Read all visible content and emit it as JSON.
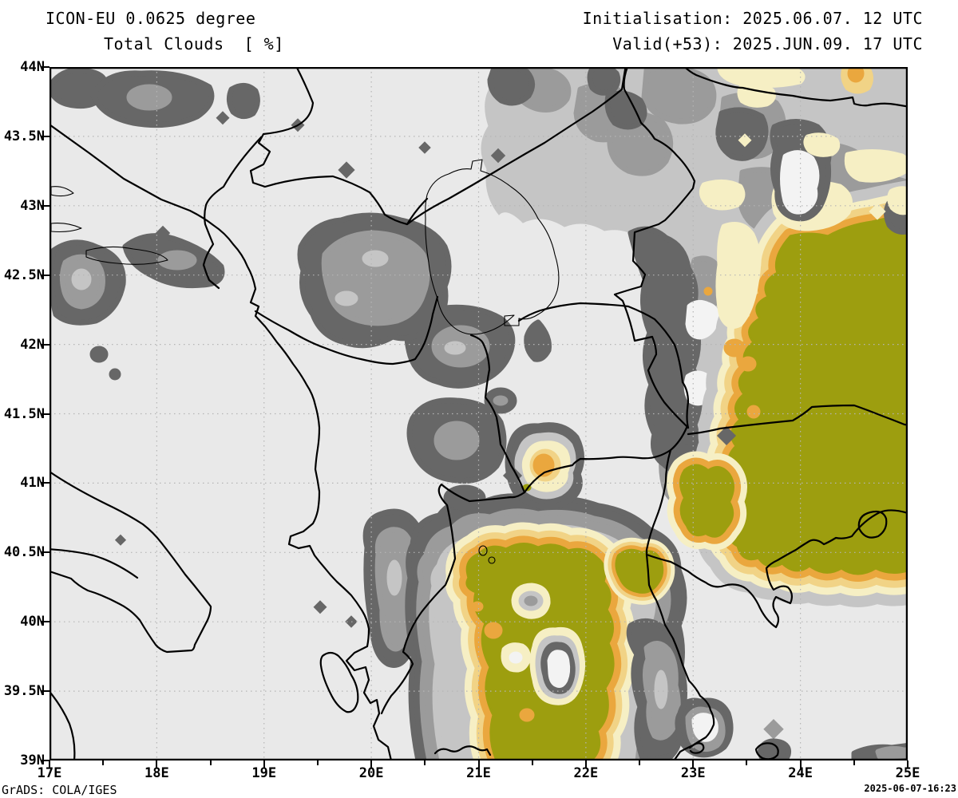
{
  "header": {
    "model_line": "ICON-EU 0.0625 degree",
    "field_line": "Total Clouds  [ %]",
    "init_line": "Initialisation: 2025.06.07. 12 UTC",
    "valid_line": "Valid(+53): 2025.JUN.09. 17 UTC"
  },
  "axes": {
    "y_labels": [
      "44N",
      "43.5N",
      "43N",
      "42.5N",
      "42N",
      "41.5N",
      "41N",
      "40.5N",
      "40N",
      "39.5N",
      "39N"
    ],
    "x_labels": [
      "17E",
      "18E",
      "19E",
      "20E",
      "21E",
      "22E",
      "23E",
      "24E",
      "25E"
    ]
  },
  "footer": {
    "credit": "GrADS: COLA/IGES",
    "timestamp": "2025-06-07-16:23"
  },
  "palette": {
    "background": "#e9e9e9",
    "cloud_band_1": "#676767",
    "cloud_band_2": "#9b9b9b",
    "cloud_band_3": "#c5c5c5",
    "cloud_band_4": "#f3f3f3",
    "cloud_band_5": "#f6efc4",
    "cloud_band_6": "#f1d386",
    "cloud_band_7": "#eaa73e",
    "cloud_band_8": "#9d9e0f",
    "border_lines": "#000000",
    "grid_lines": "#b5b5b5"
  }
}
